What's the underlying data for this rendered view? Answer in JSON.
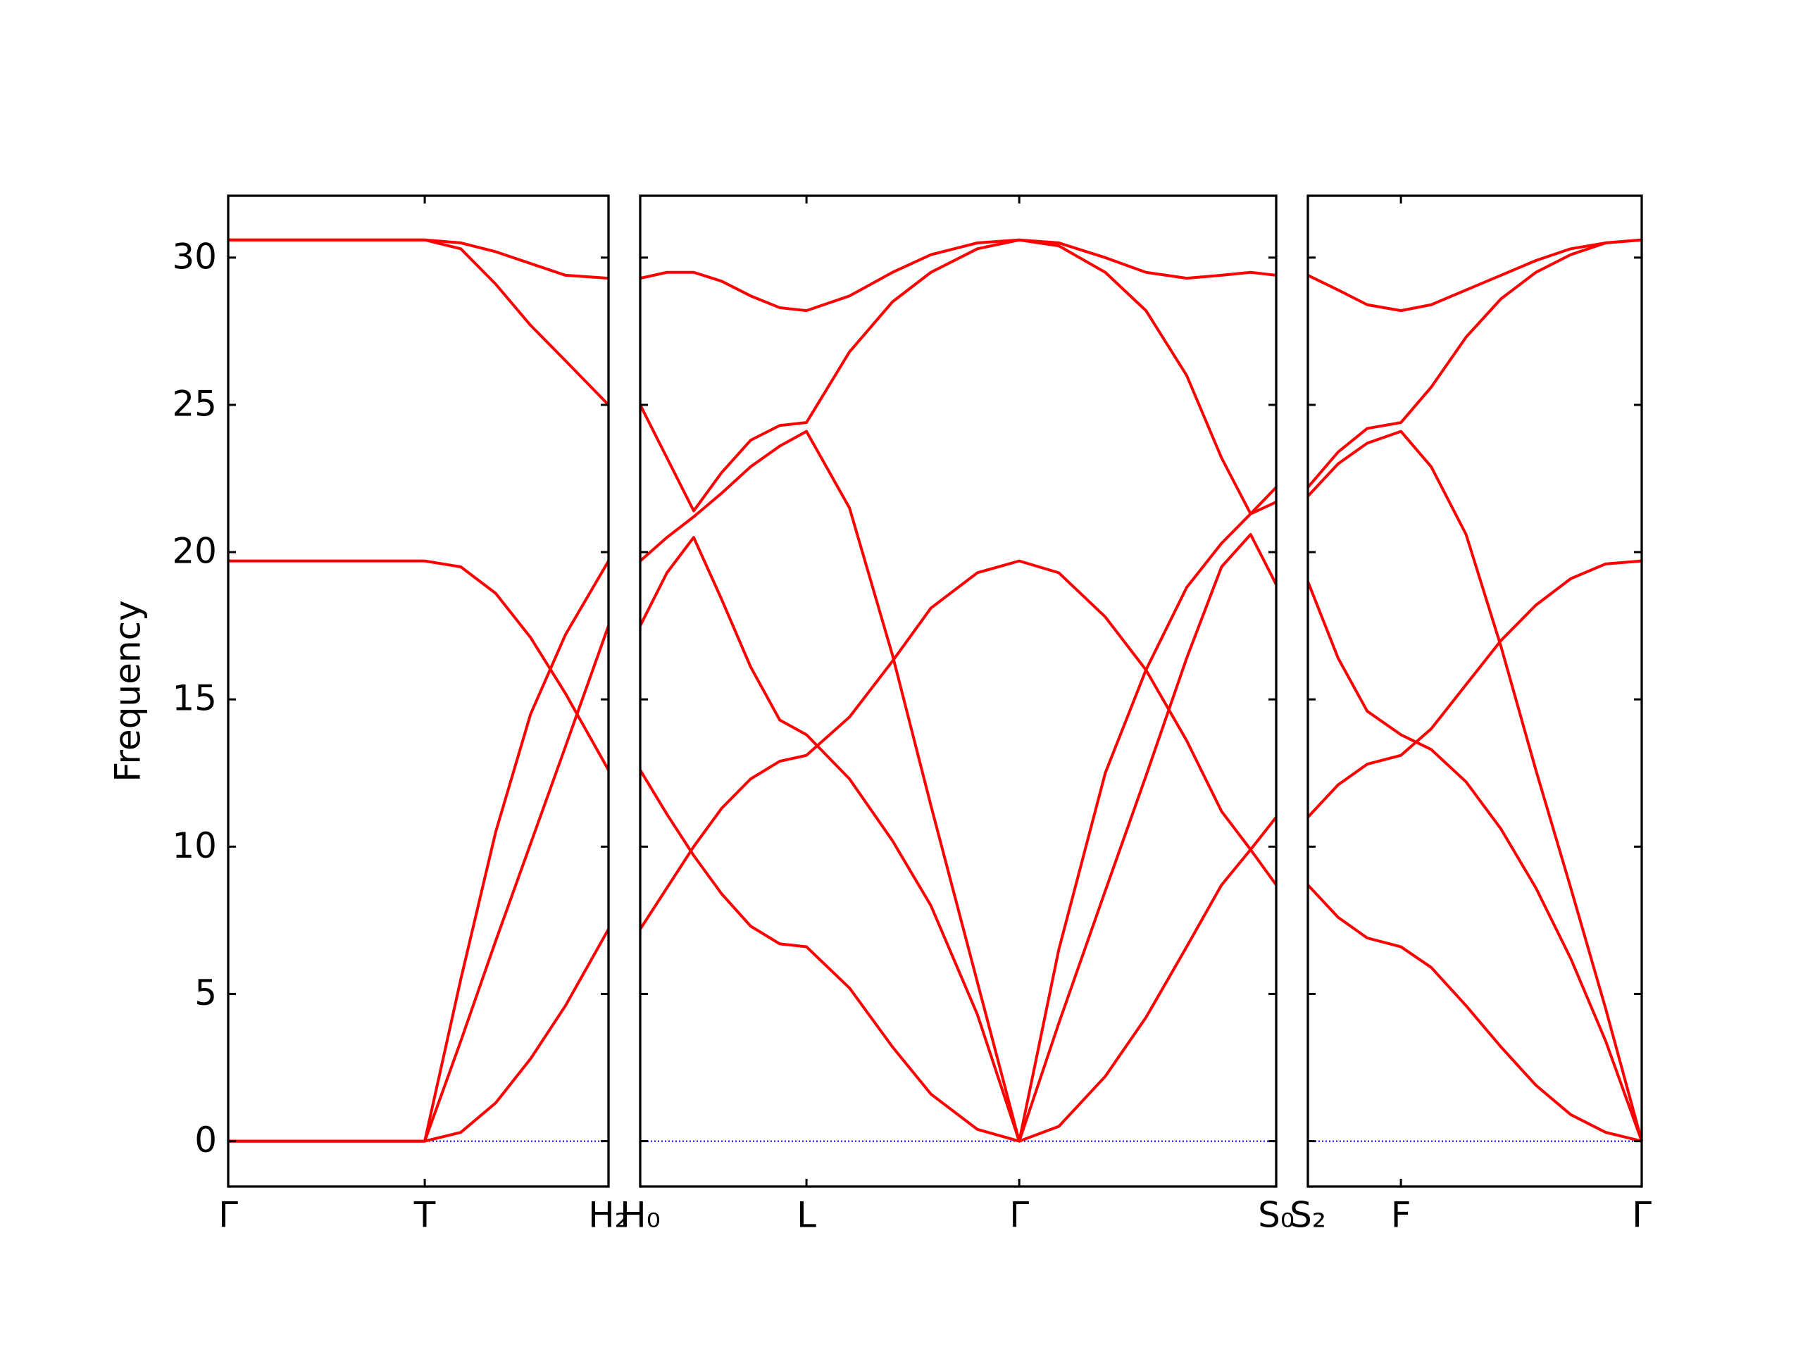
{
  "chart_data": [
    {
      "type": "line",
      "ylabel": "Frequency",
      "x": [
        0,
        0.85,
        1.69,
        2.0,
        2.3,
        2.6,
        2.9,
        3.27
      ],
      "xlim": [
        0,
        3.27
      ],
      "xticks": [
        {
          "value": 0,
          "label": "Γ"
        },
        {
          "value": 1.69,
          "label": "T"
        },
        {
          "value": 3.27,
          "label": "H₂"
        }
      ],
      "ylim": [
        -1.54,
        32.1
      ],
      "yticks": [
        0,
        5,
        10,
        15,
        20,
        25,
        30
      ],
      "ytick_labels": true,
      "reference_line": {
        "y": 0,
        "color": "#0000ff"
      },
      "series": [
        {
          "color": "#ff0000",
          "values": [
            30.6,
            30.6,
            30.6,
            30.5,
            30.2,
            29.8,
            29.4,
            29.3
          ]
        },
        {
          "color": "#ff0000",
          "values": [
            30.6,
            30.6,
            30.6,
            30.3,
            29.1,
            27.7,
            26.5,
            25.0
          ]
        },
        {
          "color": "#ff0000",
          "values": [
            19.7,
            19.7,
            19.7,
            19.5,
            18.6,
            17.1,
            15.2,
            12.6
          ]
        },
        {
          "color": "#ff0000",
          "values": [
            0,
            0,
            0,
            5.5,
            10.5,
            14.5,
            17.2,
            19.7
          ]
        },
        {
          "color": "#ff0000",
          "values": [
            0,
            0,
            0,
            3.4,
            6.8,
            10.1,
            13.4,
            17.5
          ]
        },
        {
          "color": "#ff0000",
          "values": [
            0,
            0,
            0,
            0.3,
            1.3,
            2.8,
            4.6,
            7.2
          ]
        }
      ]
    },
    {
      "type": "line",
      "x": [
        0,
        0.23,
        0.46,
        0.7,
        0.95,
        1.2,
        1.43,
        1.8,
        2.17,
        2.5,
        2.9,
        3.26,
        3.6,
        4.0,
        4.35,
        4.7,
        5.0,
        5.25,
        5.47
      ],
      "xlim": [
        0,
        5.47
      ],
      "xticks": [
        {
          "value": 0,
          "label": "H₀"
        },
        {
          "value": 1.43,
          "label": "L"
        },
        {
          "value": 3.26,
          "label": "Γ"
        },
        {
          "value": 5.47,
          "label": "S₀"
        }
      ],
      "ylim": [
        -1.54,
        32.1
      ],
      "yticks": [
        0,
        5,
        10,
        15,
        20,
        25,
        30
      ],
      "ytick_labels": false,
      "reference_line": {
        "y": 0,
        "color": "#0000ff"
      },
      "series": [
        {
          "color": "#ff0000",
          "values": [
            29.3,
            29.5,
            29.5,
            29.2,
            28.7,
            28.3,
            28.2,
            28.7,
            29.5,
            30.1,
            30.5,
            30.6,
            30.5,
            30.0,
            29.5,
            29.3,
            29.4,
            29.5,
            29.4
          ]
        },
        {
          "color": "#ff0000",
          "values": [
            25.0,
            23.2,
            21.4,
            22.7,
            23.8,
            24.3,
            24.4,
            26.8,
            28.5,
            29.5,
            30.3,
            30.6,
            30.4,
            29.5,
            28.2,
            26.0,
            23.2,
            21.3,
            22.2
          ]
        },
        {
          "color": "#ff0000",
          "values": [
            19.7,
            20.5,
            21.2,
            22.0,
            22.9,
            23.6,
            24.1,
            21.5,
            16.5,
            11.4,
            5.4,
            0,
            6.5,
            12.5,
            16.0,
            18.8,
            20.3,
            21.3,
            21.7
          ]
        },
        {
          "color": "#ff0000",
          "values": [
            17.5,
            19.3,
            20.5,
            18.4,
            16.1,
            14.3,
            13.8,
            12.3,
            10.2,
            8.0,
            4.3,
            0,
            4.0,
            8.5,
            12.4,
            16.4,
            19.5,
            20.6,
            18.9
          ]
        },
        {
          "color": "#ff0000",
          "values": [
            12.6,
            11.1,
            9.7,
            8.4,
            7.3,
            6.7,
            6.6,
            5.2,
            3.2,
            1.6,
            0.4,
            0,
            0.5,
            2.2,
            4.2,
            6.6,
            8.7,
            9.9,
            11.0
          ]
        },
        {
          "color": "#ff0000",
          "values": [
            7.2,
            8.6,
            10.0,
            11.3,
            12.3,
            12.9,
            13.1,
            14.4,
            16.3,
            18.1,
            19.3,
            19.7,
            19.3,
            17.8,
            16.0,
            13.6,
            11.2,
            9.9,
            8.7
          ]
        }
      ]
    },
    {
      "type": "line",
      "x": [
        0,
        0.26,
        0.51,
        0.8,
        1.06,
        1.36,
        1.66,
        1.96,
        2.26,
        2.56,
        2.87
      ],
      "xlim": [
        0,
        2.87
      ],
      "xticks": [
        {
          "value": 0,
          "label": "S₂"
        },
        {
          "value": 0.8,
          "label": "F"
        },
        {
          "value": 2.87,
          "label": "Γ"
        }
      ],
      "ylim": [
        -1.54,
        32.1
      ],
      "yticks": [
        0,
        5,
        10,
        15,
        20,
        25,
        30
      ],
      "ytick_labels": false,
      "reference_line": {
        "y": 0,
        "color": "#0000ff"
      },
      "series": [
        {
          "color": "#ff0000",
          "values": [
            29.4,
            28.9,
            28.4,
            28.2,
            28.4,
            28.9,
            29.4,
            29.9,
            30.3,
            30.5,
            30.6
          ]
        },
        {
          "color": "#ff0000",
          "values": [
            22.2,
            23.4,
            24.2,
            24.4,
            25.6,
            27.3,
            28.6,
            29.5,
            30.1,
            30.5,
            30.6
          ]
        },
        {
          "color": "#ff0000",
          "values": [
            21.9,
            23.0,
            23.7,
            24.1,
            22.9,
            20.6,
            16.8,
            12.6,
            8.6,
            4.5,
            0
          ]
        },
        {
          "color": "#ff0000",
          "values": [
            19.0,
            16.4,
            14.6,
            13.8,
            13.3,
            12.2,
            10.6,
            8.6,
            6.2,
            3.4,
            0
          ]
        },
        {
          "color": "#ff0000",
          "values": [
            11.0,
            12.1,
            12.8,
            13.1,
            14.0,
            15.5,
            17.0,
            18.2,
            19.1,
            19.6,
            19.7
          ]
        },
        {
          "color": "#ff0000",
          "values": [
            8.7,
            7.6,
            6.9,
            6.6,
            5.9,
            4.6,
            3.2,
            1.9,
            0.9,
            0.3,
            0
          ]
        }
      ]
    }
  ]
}
